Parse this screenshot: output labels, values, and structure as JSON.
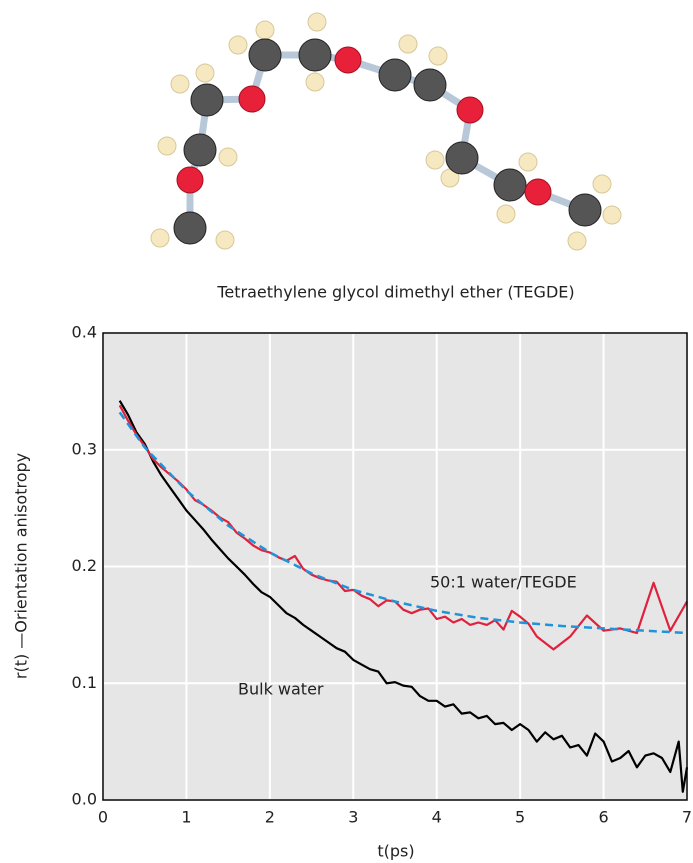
{
  "chart_data": {
    "type": "line",
    "caption": "Tetraethylene glycol dimethyl ether (TEGDE)",
    "y_label": "r(t) —Orientation anisotropy",
    "x_label": "t(ps)",
    "xlim": [
      0,
      7
    ],
    "ylim": [
      0,
      0.4
    ],
    "xticks": [
      0,
      1,
      2,
      3,
      4,
      5,
      6,
      7
    ],
    "yticks": [
      {
        "value": 0,
        "label": "0.0"
      },
      0.1,
      0.2,
      0.3,
      0.4
    ],
    "grid": true,
    "series": [
      {
        "name": "Bulk water",
        "color": "#000000",
        "x": [
          0.2,
          0.3,
          0.4,
          0.5,
          0.6,
          0.7,
          0.8,
          0.9,
          1.0,
          1.1,
          1.2,
          1.3,
          1.4,
          1.5,
          1.6,
          1.7,
          1.8,
          1.9,
          2.0,
          2.1,
          2.2,
          2.3,
          2.4,
          2.5,
          2.6,
          2.7,
          2.8,
          2.9,
          3.0,
          3.1,
          3.2,
          3.3,
          3.4,
          3.5,
          3.6,
          3.7,
          3.8,
          3.9,
          4.0,
          4.1,
          4.2,
          4.3,
          4.4,
          4.5,
          4.6,
          4.7,
          4.8,
          4.9,
          5.0,
          5.1,
          5.2,
          5.3,
          5.4,
          5.5,
          5.6,
          5.7,
          5.8,
          5.9,
          6.0,
          6.1,
          6.2,
          6.3,
          6.4,
          6.5,
          6.6,
          6.7,
          6.8,
          6.9,
          6.95,
          7.0
        ],
        "values": [
          0.342,
          0.33,
          0.315,
          0.305,
          0.29,
          0.278,
          0.268,
          0.258,
          0.248,
          0.24,
          0.232,
          0.223,
          0.215,
          0.207,
          0.2,
          0.193,
          0.185,
          0.178,
          0.174,
          0.167,
          0.16,
          0.156,
          0.15,
          0.145,
          0.14,
          0.135,
          0.13,
          0.127,
          0.12,
          0.116,
          0.112,
          0.11,
          0.1,
          0.101,
          0.098,
          0.097,
          0.089,
          0.085,
          0.085,
          0.08,
          0.082,
          0.074,
          0.075,
          0.07,
          0.072,
          0.065,
          0.066,
          0.06,
          0.065,
          0.06,
          0.05,
          0.058,
          0.052,
          0.055,
          0.045,
          0.047,
          0.038,
          0.057,
          0.05,
          0.033,
          0.036,
          0.042,
          0.028,
          0.038,
          0.04,
          0.036,
          0.024,
          0.05,
          0.007,
          0.028
        ]
      },
      {
        "name": "50:1 water/TEGDE",
        "color": "#e0203c",
        "x": [
          0.2,
          0.3,
          0.4,
          0.5,
          0.6,
          0.7,
          0.8,
          0.9,
          1.0,
          1.1,
          1.2,
          1.3,
          1.4,
          1.5,
          1.6,
          1.7,
          1.8,
          1.9,
          2.0,
          2.1,
          2.2,
          2.3,
          2.4,
          2.5,
          2.6,
          2.7,
          2.8,
          2.9,
          3.0,
          3.1,
          3.2,
          3.3,
          3.4,
          3.5,
          3.6,
          3.7,
          3.8,
          3.9,
          4.0,
          4.1,
          4.2,
          4.3,
          4.4,
          4.5,
          4.6,
          4.7,
          4.8,
          4.9,
          5.0,
          5.1,
          5.2,
          5.4,
          5.6,
          5.8,
          6.0,
          6.2,
          6.4,
          6.6,
          6.8,
          7.0
        ],
        "values": [
          0.338,
          0.325,
          0.313,
          0.303,
          0.292,
          0.285,
          0.279,
          0.273,
          0.266,
          0.257,
          0.253,
          0.248,
          0.242,
          0.238,
          0.229,
          0.224,
          0.218,
          0.214,
          0.212,
          0.208,
          0.205,
          0.209,
          0.198,
          0.193,
          0.19,
          0.188,
          0.187,
          0.179,
          0.18,
          0.175,
          0.172,
          0.166,
          0.171,
          0.17,
          0.163,
          0.16,
          0.163,
          0.164,
          0.155,
          0.157,
          0.152,
          0.155,
          0.15,
          0.152,
          0.15,
          0.154,
          0.146,
          0.162,
          0.157,
          0.151,
          0.14,
          0.129,
          0.14,
          0.158,
          0.145,
          0.147,
          0.143,
          0.186,
          0.145,
          0.17
        ]
      },
      {
        "color": "#1f94d8",
        "dashed": true,
        "x": [
          0.2,
          0.5,
          1.0,
          1.5,
          2.0,
          2.5,
          3.0,
          3.5,
          4.0,
          4.5,
          5.0,
          5.5,
          6.0,
          6.5,
          7.0
        ],
        "values": [
          0.332,
          0.302,
          0.265,
          0.235,
          0.212,
          0.194,
          0.18,
          0.17,
          0.162,
          0.156,
          0.152,
          0.149,
          0.147,
          0.145,
          0.143
        ]
      }
    ]
  }
}
